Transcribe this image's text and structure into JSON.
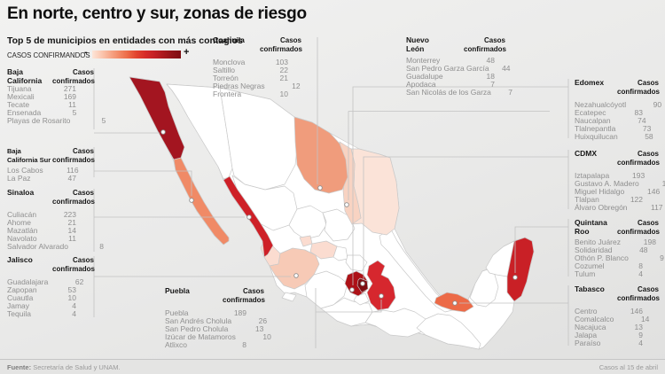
{
  "title": "En norte, centro y sur, zonas de riesgo",
  "subtitle": "Top 5 de municipios en entidades con más contagios",
  "legend": {
    "label": "CASOS CONFIRMANDOS",
    "min": "-",
    "max": "+",
    "colors": [
      "#fde5d8",
      "#fbc9b2",
      "#f7a98b",
      "#f28a67",
      "#ec6a47",
      "#e2442f",
      "#d62b28",
      "#c42026",
      "#ab191e",
      "#911318",
      "#7e0d12"
    ]
  },
  "footer": {
    "source_label": "Fuente:",
    "source_text": "Secretaría de Salud y UNAM.",
    "date_note": "Casos al 15 de abril"
  },
  "map": {
    "border_color": "#c9c9c9",
    "fills": {
      "base": "#ffffff",
      "baja_california": "#a31520",
      "baja_california_sur": "#f08a66",
      "sonora": "#ffffff",
      "chihuahua": "#ffffff",
      "coahuila": "#f09c7c",
      "nuevo_leon": "#f8d3c2",
      "tamaulipas": "#fbe3d8",
      "sinaloa": "#ce2027",
      "durango": "#ffffff",
      "zacatecas": "#ffffff",
      "san_luis_potosi": "#ffffff",
      "aguascalientes": "#fbdcd0",
      "nayarit": "#fbdcd0",
      "jalisco": "#f7cab6",
      "colima": "#ffffff",
      "guanajuato": "#fbdcd0",
      "queretaro": "#ffffff",
      "hidalgo": "#ffffff",
      "michoacan": "#ffffff",
      "edomex": "#ad1117",
      "cdmx": "#7e0d12",
      "morelos": "#ffffff",
      "puebla": "#d6272e",
      "veracruz": "#ffffff",
      "guerrero": "#ffffff",
      "oaxaca": "#ffffff",
      "chiapas": "#ffffff",
      "tabasco": "#ec6a47",
      "campeche": "#ffffff",
      "yucatan": "#ffffff",
      "quintana_roo": "#c92026"
    }
  },
  "chart_data": {
    "type": "table",
    "title": "En norte, centro y sur, zonas de riesgo",
    "subtitle": "Top 5 de municipios en entidades con más contagios",
    "legend": "CASOS CONFIRMANDOS (- a +)",
    "groups": [
      {
        "entity": "Baja California",
        "value_header": "Casos confirmados",
        "rows": [
          [
            "Tijuana",
            271
          ],
          [
            "Mexicali",
            169
          ],
          [
            "Tecate",
            11
          ],
          [
            "Ensenada",
            5
          ],
          [
            "Playas de Rosarito",
            5
          ]
        ]
      },
      {
        "entity": "Baja California Sur",
        "value_header": "Casos confirmados",
        "rows": [
          [
            "Los Cabos",
            116
          ],
          [
            "La Paz",
            47
          ]
        ]
      },
      {
        "entity": "Sinaloa",
        "value_header": "Casos confirmados",
        "rows": [
          [
            "Culiacán",
            223
          ],
          [
            "Ahome",
            21
          ],
          [
            "Mazatlán",
            14
          ],
          [
            "Navolato",
            11
          ],
          [
            "Salvador Alvarado",
            8
          ]
        ]
      },
      {
        "entity": "Jalisco",
        "value_header": "Casos confirmados",
        "rows": [
          [
            "Guadalajara",
            62
          ],
          [
            "Zapopan",
            53
          ],
          [
            "Cuautla",
            10
          ],
          [
            "Jamay",
            4
          ],
          [
            "Tequila",
            4
          ]
        ]
      },
      {
        "entity": "Coahuila",
        "value_header": "Casos confirmados",
        "rows": [
          [
            "Monclova",
            103
          ],
          [
            "Saltillo",
            22
          ],
          [
            "Torreón",
            21
          ],
          [
            "Piedras Negras",
            12
          ],
          [
            "Frontera",
            10
          ]
        ]
      },
      {
        "entity": "Nuevo León",
        "value_header": "Casos confirmados",
        "rows": [
          [
            "Monterrey",
            48
          ],
          [
            "San Pedro Garza García",
            44
          ],
          [
            "Guadalupe",
            18
          ],
          [
            "Apodaca",
            7
          ],
          [
            "San Nicolás de los Garza",
            7
          ]
        ]
      },
      {
        "entity": "Edomex",
        "value_header": "Casos confirmados",
        "rows": [
          [
            "Nezahualcóyotl",
            90
          ],
          [
            "Ecatepec",
            83
          ],
          [
            "Naucalpan",
            74
          ],
          [
            "Tlalnepantla",
            73
          ],
          [
            "Huixquilucan",
            58
          ]
        ]
      },
      {
        "entity": "CDMX",
        "value_header": "Casos confirmados",
        "rows": [
          [
            "Iztapalapa",
            193
          ],
          [
            "Gustavo A. Madero",
            167
          ],
          [
            "Miguel Hidalgo",
            146
          ],
          [
            "Tlalpan",
            122
          ],
          [
            "Álvaro Obregón",
            117
          ]
        ]
      },
      {
        "entity": "Quintana Roo",
        "value_header": "Casos confirmados",
        "rows": [
          [
            "Benito Juárez",
            198
          ],
          [
            "Solidaridad",
            48
          ],
          [
            "Othón P. Blanco",
            9
          ],
          [
            "Cozumel",
            8
          ],
          [
            "Tulum",
            4
          ]
        ]
      },
      {
        "entity": "Tabasco",
        "value_header": "Casos confirmados",
        "rows": [
          [
            "Centro",
            146
          ],
          [
            "Comalcalco",
            14
          ],
          [
            "Nacajuca",
            13
          ],
          [
            "Jalapa",
            9
          ],
          [
            "Paraíso",
            4
          ]
        ]
      },
      {
        "entity": "Puebla",
        "value_header": "Casos confirmados",
        "rows": [
          [
            "Puebla",
            189
          ],
          [
            "San Andrés Cholula",
            26
          ],
          [
            "San Pedro Cholula",
            13
          ],
          [
            "Izúcar de Matamoros",
            10
          ],
          [
            "Atlixco",
            8
          ]
        ]
      }
    ]
  }
}
